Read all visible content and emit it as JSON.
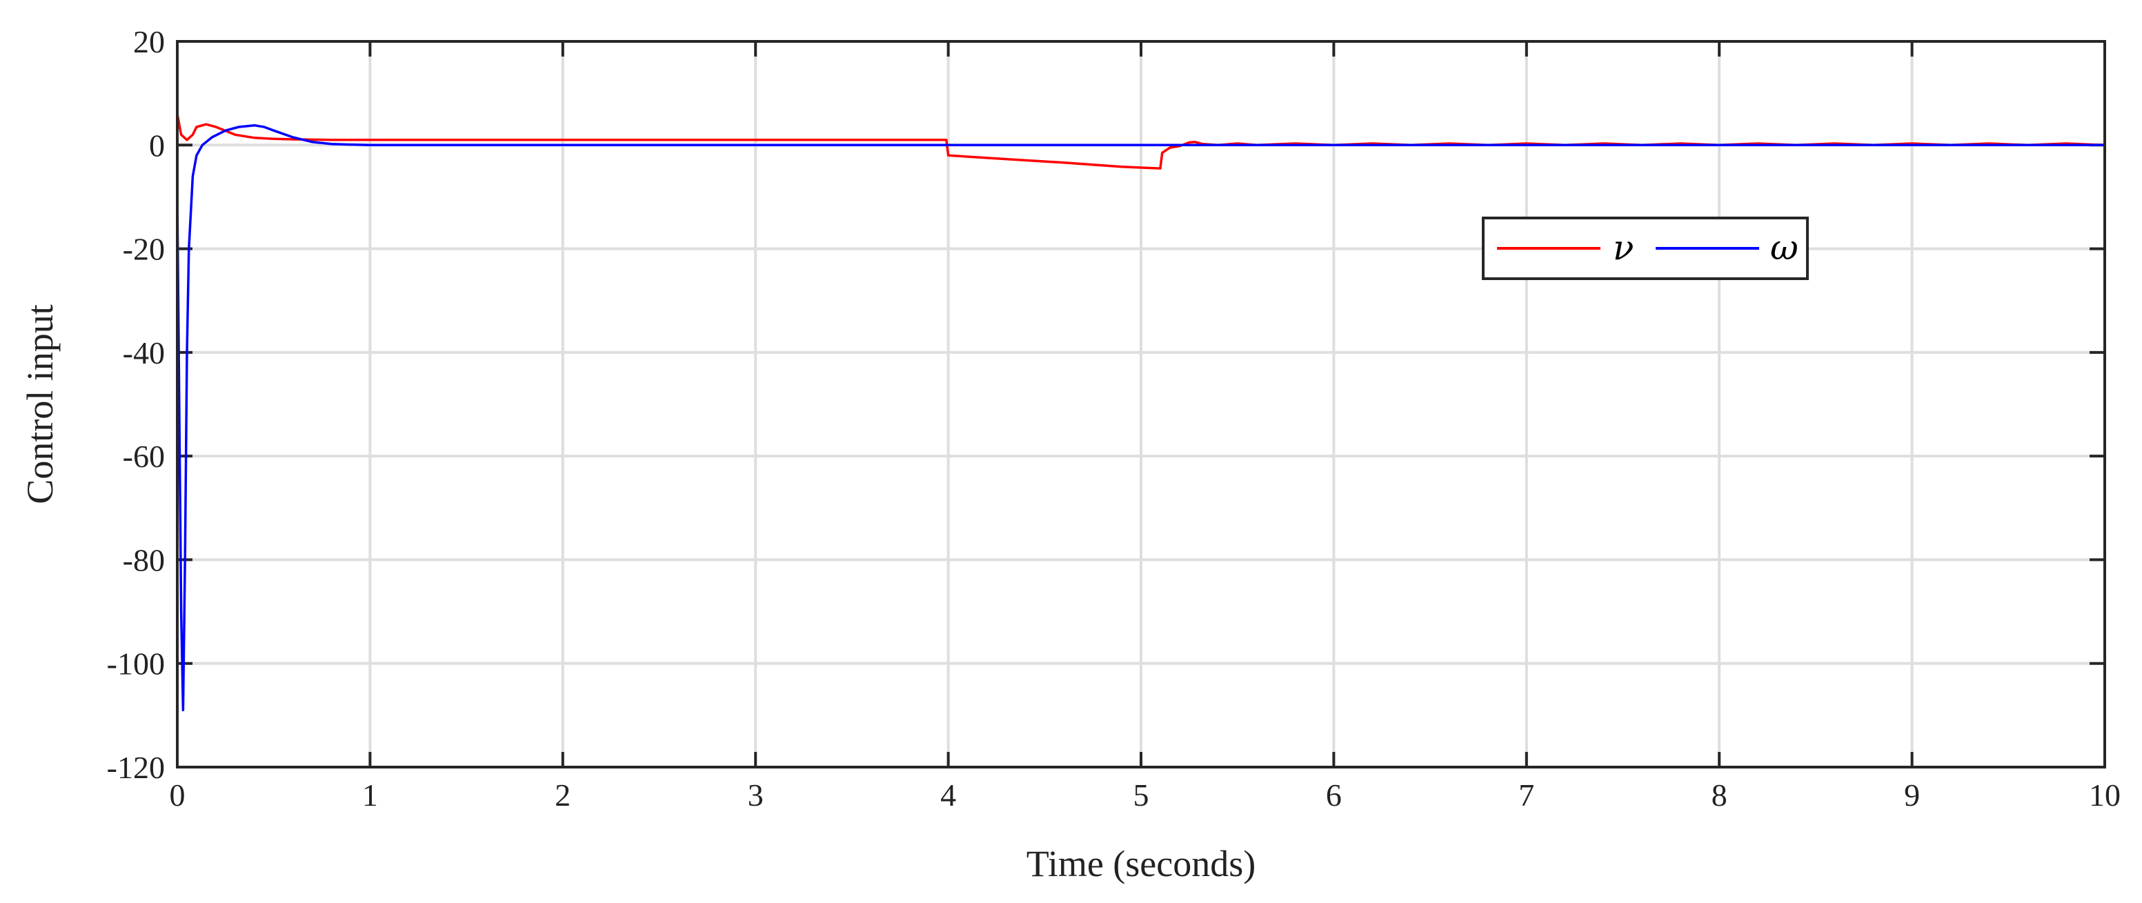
{
  "chart_data": {
    "type": "line",
    "xlabel": "Time (seconds)",
    "ylabel": "Control input",
    "xlim": [
      0,
      10
    ],
    "ylim": [
      -120,
      20
    ],
    "xticks": [
      0,
      1,
      2,
      3,
      4,
      5,
      6,
      7,
      8,
      9,
      10
    ],
    "xtick_labels": [
      "0",
      "1",
      "2",
      "3",
      "4",
      "5",
      "6",
      "7",
      "8",
      "9",
      "10"
    ],
    "yticks": [
      20,
      0,
      -20,
      -40,
      -60,
      -80,
      -100,
      -120
    ],
    "ytick_labels": [
      "20",
      "0",
      "-20",
      "-40",
      "-60",
      "-80",
      "-100",
      "-120"
    ],
    "grid": true,
    "legend_position": "upper-right-center",
    "series": [
      {
        "name": "ν",
        "color": "#ff0000",
        "x": [
          0,
          0.02,
          0.05,
          0.08,
          0.1,
          0.15,
          0.2,
          0.3,
          0.4,
          0.5,
          0.6,
          0.8,
          1.0,
          2.0,
          3.0,
          3.99,
          4.0,
          4.3,
          4.6,
          4.9,
          5.1,
          5.11,
          5.15,
          5.2,
          5.25,
          5.28,
          5.32,
          5.4,
          5.5,
          5.6,
          5.8,
          6.0,
          6.2,
          6.4,
          6.6,
          6.8,
          7.0,
          7.2,
          7.4,
          7.6,
          7.8,
          8.0,
          8.2,
          8.4,
          8.6,
          8.8,
          9.0,
          9.2,
          9.4,
          9.6,
          9.8,
          10.0
        ],
        "y": [
          6,
          2,
          1,
          2,
          3.5,
          4,
          3.5,
          2,
          1.4,
          1.2,
          1.1,
          1.0,
          1.0,
          1.0,
          1.0,
          1.0,
          -2,
          -2.7,
          -3.4,
          -4.2,
          -4.5,
          -1.5,
          -0.5,
          -0.2,
          0.5,
          0.6,
          0.2,
          0,
          0.3,
          0,
          0.3,
          0,
          0.3,
          0,
          0.3,
          0,
          0.3,
          0,
          0.3,
          0,
          0.3,
          0,
          0.3,
          0,
          0.3,
          0,
          0.3,
          0,
          0.3,
          0,
          0.3,
          0
        ]
      },
      {
        "name": "ω",
        "color": "#0000ff",
        "x": [
          0,
          0.01,
          0.02,
          0.03,
          0.04,
          0.05,
          0.06,
          0.08,
          0.1,
          0.13,
          0.18,
          0.25,
          0.32,
          0.4,
          0.45,
          0.5,
          0.6,
          0.7,
          0.8,
          1.0,
          1.5,
          2.0,
          3.0,
          4.0,
          5.0,
          6.0,
          7.0,
          8.0,
          9.0,
          10.0
        ],
        "y": [
          -10,
          -50,
          -90,
          -109,
          -80,
          -40,
          -20,
          -6,
          -2,
          0,
          1.5,
          2.8,
          3.5,
          3.8,
          3.5,
          2.8,
          1.5,
          0.6,
          0.2,
          0,
          0,
          0,
          0,
          0,
          0,
          0,
          0,
          0,
          0,
          0
        ]
      }
    ]
  }
}
